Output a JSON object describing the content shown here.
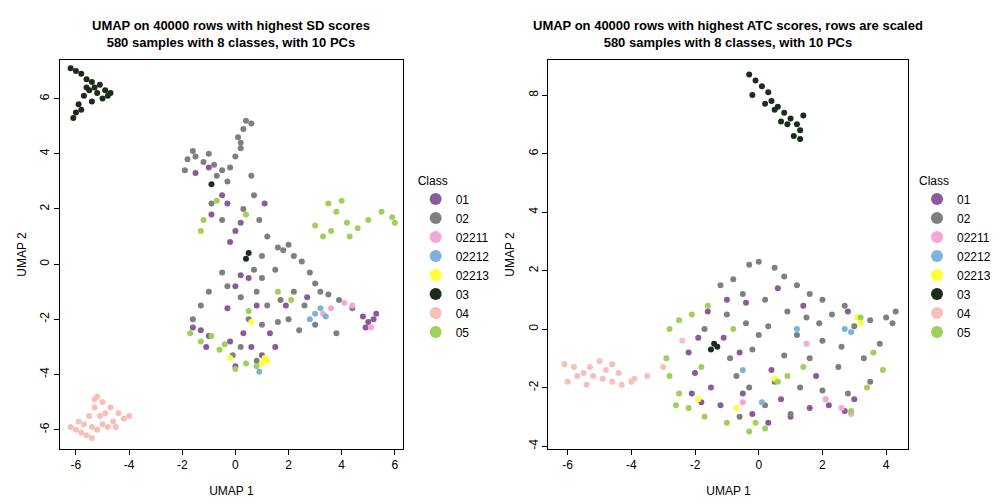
{
  "chart_data": [
    {
      "type": "scatter",
      "title": "UMAP on 40000 rows with highest SD scores",
      "subtitle": "580 samples with 8 classes, with 10 PCs",
      "x_label": "UMAP 1",
      "y_label": "UMAP 2",
      "legend_title": "Class",
      "legend": "right",
      "grid": false,
      "marker": "circle",
      "xlim": [
        -6.6,
        6.3
      ],
      "ylim": [
        -6.7,
        7.4
      ],
      "xticks": [
        -6,
        -4,
        -2,
        0,
        2,
        4,
        6
      ],
      "yticks": [
        -6,
        -4,
        -2,
        0,
        2,
        4,
        6
      ],
      "series": [
        {
          "name": "01",
          "color": "#8B5A9C",
          "x": [
            -1.5,
            -1.0,
            -0.5,
            -0.3,
            0.2,
            0,
            -0.9,
            1.1,
            0.5,
            0,
            -0.3,
            0.3,
            0.6,
            -0.2,
            -1.3,
            -1.6,
            -1.0,
            4.8,
            5.0,
            5.2,
            4.9,
            5.3,
            1.3,
            0.8,
            2.7,
            0.2,
            -1.1,
            0,
            1.0,
            -0.2,
            1.5,
            1.9
          ],
          "y": [
            3.3,
            3.5,
            2.5,
            2.2,
            1.5,
            1.2,
            1.8,
            2.2,
            -0.5,
            -0.8,
            -1.6,
            -2.5,
            -3.0,
            -2.8,
            -2.4,
            -2.3,
            -2.6,
            -1.9,
            -2.1,
            -2.0,
            -2.3,
            -1.8,
            -2.5,
            -1.5,
            -1.2,
            -0.4,
            -3.0,
            -3.7,
            -3.3,
            0.8,
            -3.0,
            -1.5
          ]
        },
        {
          "name": "02",
          "color": "#7F7F7F",
          "x": [
            -1.8,
            -1.5,
            -1.2,
            -0.8,
            -0.5,
            -0.2,
            0,
            0.2,
            0.1,
            0.3,
            0.4,
            0.6,
            0.2,
            -1.6,
            -1.0,
            -0.7,
            -0.3,
            -1.9,
            0.6,
            0.7,
            0.3,
            0.9,
            1.2,
            1.6,
            1.8,
            2.0,
            2.2,
            2.5,
            2.8,
            3.0,
            3.2,
            3.5,
            3.9,
            1.5,
            1.0,
            0.8,
            1.2,
            1.7,
            2.0,
            2.4,
            1.6,
            1.0,
            0.5,
            0.2,
            -0.3,
            -0.5,
            -1.0,
            -1.3,
            -1.6,
            0.2,
            0.8,
            -0.1,
            2.6,
            3.0,
            2.2,
            1.0,
            0.7,
            -0.9,
            -0.5,
            4.4,
            3.8
          ],
          "y": [
            3.8,
            3.9,
            3.7,
            3.6,
            3.4,
            3.5,
            3.9,
            4.2,
            4.6,
            4.9,
            5.2,
            5.1,
            4.4,
            4.1,
            4.0,
            3.2,
            3.0,
            3.4,
            3.2,
            2.5,
            2.0,
            1.6,
            1.0,
            0.6,
            0.5,
            0.7,
            0.3,
            0.1,
            -0.3,
            -0.7,
            -1.0,
            -1.1,
            -1.3,
            -0.2,
            -0.5,
            -1.0,
            -1.5,
            -1.3,
            -2.0,
            -2.4,
            -2.1,
            -2.2,
            -2.0,
            -1.2,
            -0.8,
            -0.3,
            -1.0,
            -1.5,
            -2.0,
            -3.0,
            -3.5,
            -3.3,
            -1.5,
            -2.2,
            -1.0,
            0.3,
            -0.2,
            2.2,
            1.6,
            -1.6,
            -2.5
          ]
        },
        {
          "name": "02211",
          "color": "#F4A6D7",
          "x": [
            3.6,
            4.1,
            4.4,
            5.1,
            3.3
          ],
          "y": [
            -1.6,
            -1.4,
            -1.5,
            -2.3,
            -1.8
          ]
        },
        {
          "name": "02212",
          "color": "#7FB2D9",
          "x": [
            3.0,
            3.2,
            2.8,
            0.9,
            3.4
          ],
          "y": [
            -1.8,
            -1.6,
            -2.0,
            -3.9,
            -1.9
          ]
        },
        {
          "name": "02213",
          "color": "#FFFF33",
          "x": [
            1.1,
            1.2,
            1.0,
            -0.2,
            0.6
          ],
          "y": [
            -3.4,
            -3.5,
            -3.6,
            -3.4,
            -2.1
          ]
        },
        {
          "name": "03",
          "color": "#1C2B1C",
          "x": [
            -6.2,
            -6.0,
            -5.8,
            -5.6,
            -5.4,
            -5.3,
            -5.1,
            -4.9,
            -4.8,
            -5.0,
            -5.2,
            -5.5,
            -5.7,
            -5.9,
            -6.0,
            -6.1,
            -5.8,
            -5.4,
            -4.7,
            -5.6,
            -0.9,
            0.5,
            0.4
          ],
          "y": [
            7.1,
            7.0,
            6.9,
            6.7,
            6.6,
            6.4,
            6.5,
            6.3,
            6.1,
            6.0,
            6.2,
            6.3,
            6.1,
            5.8,
            5.5,
            5.3,
            5.6,
            5.9,
            6.2,
            6.4,
            2.9,
            0.4,
            0.2
          ]
        },
        {
          "name": "04",
          "color": "#F7BFB8",
          "x": [
            -6.2,
            -6.0,
            -5.8,
            -5.6,
            -5.4,
            -5.2,
            -5.0,
            -4.8,
            -4.6,
            -4.2,
            -4.0,
            -4.4,
            -4.7,
            -5.0,
            -5.2,
            -5.3,
            -5.5,
            -5.7,
            -5.1,
            -4.9,
            -5.3,
            -5.9,
            -4.5,
            -5.4
          ],
          "y": [
            -5.9,
            -6.0,
            -6.1,
            -6.2,
            -6.3,
            -6.0,
            -5.8,
            -5.9,
            -5.7,
            -5.6,
            -5.5,
            -5.4,
            -5.2,
            -5.0,
            -4.8,
            -5.2,
            -5.5,
            -5.8,
            -5.5,
            -5.4,
            -4.9,
            -5.7,
            -5.9,
            -5.9
          ]
        },
        {
          "name": "05",
          "color": "#9ED05A",
          "x": [
            3.5,
            3.8,
            4.2,
            4.6,
            5.0,
            5.5,
            5.9,
            6.0,
            3.3,
            3.6,
            3.0,
            4.0,
            -1.3,
            -1.2,
            -0.7,
            0.4,
            -1.7,
            -1.3,
            -0.9,
            -0.4,
            0,
            0.4,
            0.8,
            1.6,
            2.1,
            0.5,
            -0.6,
            4.3
          ],
          "y": [
            2.2,
            1.9,
            1.5,
            1.3,
            1.6,
            1.9,
            1.7,
            1.5,
            1.0,
            1.2,
            1.4,
            2.3,
            1.2,
            1.6,
            2.3,
            1.8,
            -2.5,
            -2.8,
            -2.6,
            -2.9,
            -3.8,
            -3.6,
            -3.7,
            -1.0,
            -1.3,
            -1.7,
            -3.1,
            1.0
          ]
        }
      ]
    },
    {
      "type": "scatter",
      "title": "UMAP on 40000 rows with highest ATC scores, rows are scaled",
      "subtitle": "580 samples with 8 classes, with 10 PCs",
      "x_label": "UMAP 1",
      "y_label": "UMAP 2",
      "legend_title": "Class",
      "legend": "right",
      "grid": false,
      "marker": "circle",
      "xlim": [
        -6.6,
        4.7
      ],
      "ylim": [
        -4.1,
        9.2
      ],
      "xticks": [
        -6,
        -4,
        -2,
        0,
        2,
        4
      ],
      "yticks": [
        -4,
        -2,
        0,
        2,
        4,
        6,
        8
      ],
      "series": [
        {
          "name": "01",
          "color": "#8B5A9C",
          "x": [
            -1.0,
            -0.4,
            0.6,
            -1.6,
            -1.9,
            -2.2,
            -2.0,
            -1.5,
            -1.8,
            -1.2,
            -0.5,
            -0.2,
            0.3,
            1.0,
            1.6,
            2.2,
            2.7,
            3.0,
            -1.1,
            -0.6,
            0.4,
            1.8,
            2.8,
            1.4,
            -2.1,
            0.7
          ],
          "y": [
            1.0,
            0.9,
            1.4,
            0.6,
            -0.3,
            -0.8,
            -1.5,
            -2.0,
            -2.5,
            -2.6,
            -2.2,
            -2.9,
            -3.2,
            -3.0,
            -2.7,
            -2.6,
            -2.8,
            -2.4,
            -0.3,
            -0.8,
            -1.4,
            -1.6,
            0.6,
            0.8,
            -2.2,
            -2.4
          ]
        },
        {
          "name": "02",
          "color": "#7F7F7F",
          "x": [
            0,
            -0.3,
            0.5,
            0.8,
            -0.8,
            -1.2,
            1.2,
            1.6,
            2.0,
            -0.5,
            0.2,
            0.9,
            1.5,
            2.3,
            2.7,
            -1.0,
            -0.4,
            0.3,
            1.2,
            2.0,
            3.0,
            3.5,
            4.0,
            4.2,
            3.8,
            3.3,
            2.5,
            1.6,
            0.8,
            -0.2,
            -0.9,
            0.5,
            1.3,
            2.0,
            2.8,
            3.5,
            -0.3,
            0.2,
            1.0,
            -0.6,
            0.0,
            1.9,
            2.6,
            -1.7,
            -0.7,
            4.3
          ],
          "y": [
            2.3,
            2.2,
            2.1,
            1.8,
            1.7,
            1.5,
            1.5,
            1.2,
            1.0,
            1.2,
            1.0,
            0.6,
            0.4,
            0.5,
            0.8,
            0.5,
            0.2,
            0.1,
            -0.2,
            -0.4,
            0.1,
            0.3,
            0.4,
            0.2,
            -0.5,
            -1.0,
            -1.3,
            -1.0,
            -0.9,
            -0.7,
            -1.0,
            -1.8,
            -2.0,
            -2.1,
            -2.2,
            -1.8,
            -2.0,
            -2.6,
            -2.9,
            -3.0,
            -0.2,
            0.2,
            -0.6,
            0.0,
            -1.6,
            0.6
          ]
        },
        {
          "name": "02211",
          "color": "#F4A6D7",
          "x": [
            2.6,
            2.9,
            1.5,
            -0.5,
            2.1
          ],
          "y": [
            -2.7,
            -2.9,
            -0.5,
            -2.5,
            -2.4
          ]
        },
        {
          "name": "02212",
          "color": "#7FB2D9",
          "x": [
            2.7,
            2.9,
            1.2,
            0.1,
            -0.5
          ],
          "y": [
            0.0,
            -0.1,
            0.0,
            -2.5,
            -1.4
          ]
        },
        {
          "name": "02213",
          "color": "#FFFF33",
          "x": [
            3.1,
            3.2,
            0.5,
            -0.7,
            -1.9
          ],
          "y": [
            0.4,
            0.2,
            -1.7,
            -2.7,
            -2.4
          ]
        },
        {
          "name": "03",
          "color": "#1C2B1C",
          "x": [
            -0.3,
            -0.1,
            0.1,
            0.3,
            0.4,
            0.6,
            0.8,
            1.0,
            1.2,
            1.3,
            1.1,
            1.4,
            0.9,
            0.5,
            0.2,
            -0.2,
            0.7,
            1.3,
            -1.4,
            -1.3,
            -1.5
          ],
          "y": [
            8.7,
            8.5,
            8.3,
            8.1,
            7.8,
            7.6,
            7.4,
            7.2,
            7.0,
            6.8,
            6.6,
            7.3,
            7.0,
            7.5,
            7.7,
            8.0,
            7.1,
            6.5,
            -0.5,
            -0.6,
            -0.7
          ]
        },
        {
          "name": "04",
          "color": "#F7BFB8",
          "x": [
            -6.1,
            -5.8,
            -5.5,
            -5.2,
            -4.9,
            -4.6,
            -4.3,
            -4.0,
            -4.6,
            -5.0,
            -5.3,
            -4.8,
            -5.7,
            -6.0,
            -4.4,
            -3.5,
            -3.0,
            -2.4,
            -3.9,
            -5.4
          ],
          "y": [
            -1.2,
            -1.3,
            -1.5,
            -1.6,
            -1.7,
            -1.8,
            -1.9,
            -1.8,
            -1.2,
            -1.1,
            -1.3,
            -1.4,
            -1.6,
            -1.8,
            -1.5,
            -1.6,
            -1.3,
            -0.4,
            -1.7,
            -1.9
          ]
        },
        {
          "name": "05",
          "color": "#9ED05A",
          "x": [
            -2.8,
            -2.5,
            -2.1,
            -1.6,
            -2.9,
            -2.8,
            -2.5,
            -2.2,
            -1.7,
            -1.0,
            -0.3,
            0.2,
            -0.1,
            0.6,
            0.9,
            1.4,
            -1.8,
            -0.8,
            3.2,
            3.6,
            3.9,
            3.4,
            2.9,
            -2.6
          ],
          "y": [
            0.0,
            0.3,
            0.5,
            0.8,
            -1.0,
            -1.6,
            -2.2,
            -2.7,
            -3.0,
            -3.2,
            -3.5,
            -3.4,
            -3.2,
            -1.8,
            -1.6,
            -1.3,
            -1.3,
            0.0,
            0.4,
            -0.8,
            -1.4,
            -2.0,
            -2.8,
            -2.6
          ]
        }
      ]
    }
  ]
}
